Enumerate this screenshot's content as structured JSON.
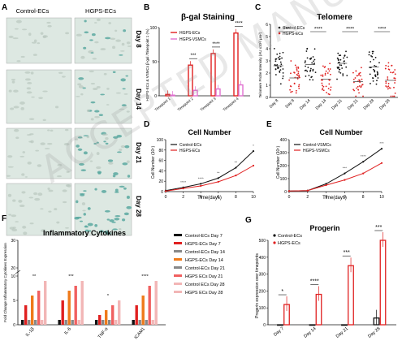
{
  "watermark": "ACCEPTED MANUSCRIPT",
  "panels": {
    "A": {
      "letter": "A",
      "col_labels": [
        "Control-ECs",
        "HGPS-ECs"
      ],
      "row_labels": [
        "Day 8",
        "Day 14",
        "Day 21",
        "Day 28"
      ]
    },
    "B": {
      "letter": "B"
    },
    "C": {
      "letter": "C"
    },
    "D": {
      "letter": "D"
    },
    "E": {
      "letter": "E"
    },
    "F": {
      "letter": "F"
    },
    "G": {
      "letter": "G"
    }
  },
  "colors": {
    "red": "#e02020",
    "pink": "#e070d0",
    "black": "#111111",
    "orange": "#ef7a1a",
    "light_pink": "#f2b6b6",
    "grey": "#888888",
    "salmon": "#f06060",
    "teal": "#5aa8a0"
  },
  "chart_data": [
    {
      "id": "B",
      "type": "bar",
      "title": "β-gal Staining",
      "ylabel": "HGPS-ECs & VSMCs β-gal /Timepoint 1 (%)",
      "categories": [
        "Timepoint 1",
        "Timepoint 2",
        "Timepoint 3",
        "Timepoint 4"
      ],
      "series": [
        {
          "name": "HGPS-ECs",
          "values": [
            2,
            45,
            62,
            92
          ]
        },
        {
          "name": "HGPS-VSMCs",
          "values": [
            1,
            8,
            10,
            16
          ]
        }
      ],
      "ylim": [
        0,
        100
      ],
      "yticks": [
        0,
        50,
        100
      ],
      "significance": [
        "***",
        "****",
        "****"
      ]
    },
    {
      "id": "C",
      "type": "scatter",
      "title": "Telomere",
      "ylabel": "Telomere Probe Intensity (AU x10³/ μm²)",
      "categories": [
        "Day 8",
        "Day 8",
        "Day 14",
        "Day 14",
        "Day 21",
        "Day 21",
        "Day 28",
        "Day 28"
      ],
      "series": [
        {
          "name": "Control-ECs",
          "positions": [
            0,
            2,
            4,
            6
          ],
          "means": [
            2.6,
            2.7,
            2.8,
            2.5
          ]
        },
        {
          "name": "HGPS-ECs",
          "positions": [
            1,
            3,
            5,
            7
          ],
          "means": [
            1.6,
            1.5,
            1.3,
            1.4
          ]
        }
      ],
      "ylim": [
        0,
        6
      ],
      "yticks": [
        0,
        1,
        2,
        3,
        4,
        5,
        6
      ],
      "significance": [
        "***",
        "****",
        "****",
        "****"
      ]
    },
    {
      "id": "D",
      "type": "line",
      "title": "Cell Number",
      "xlabel": "Time(days)",
      "ylabel": "Cell Number (10⁴)",
      "x": [
        0,
        2,
        4,
        6,
        8,
        10
      ],
      "series": [
        {
          "name": "Control-ECs",
          "values": [
            2,
            8,
            15,
            26,
            46,
            78
          ]
        },
        {
          "name": "HGPS-ECs",
          "values": [
            1,
            6,
            11,
            19,
            31,
            50
          ]
        }
      ],
      "xlim": [
        0,
        10
      ],
      "ylim": [
        0,
        100
      ],
      "xticks": [
        0,
        2,
        4,
        6,
        8,
        10
      ],
      "yticks": [
        0,
        20,
        40,
        60,
        80,
        100
      ],
      "significance": [
        "****",
        "****",
        "**",
        "**",
        "*"
      ]
    },
    {
      "id": "E",
      "type": "line",
      "title": "Cell Number",
      "xlabel": "Time(days)",
      "ylabel": "Cell Number (10⁴)",
      "x": [
        0,
        2,
        4,
        6,
        8,
        10
      ],
      "series": [
        {
          "name": "Control-VSMCs",
          "values": [
            5,
            8,
            60,
            140,
            230,
            330
          ]
        },
        {
          "name": "HGPS-VSMCs",
          "values": [
            5,
            8,
            50,
            90,
            140,
            220
          ]
        }
      ],
      "xlim": [
        0,
        10
      ],
      "ylim": [
        0,
        400
      ],
      "xticks": [
        0,
        2,
        4,
        6,
        8,
        10
      ],
      "yticks": [
        0,
        100,
        200,
        300,
        400
      ],
      "significance": [
        "***",
        "****",
        "***"
      ]
    },
    {
      "id": "F",
      "type": "bar",
      "title": "Inflammatory Cytokines",
      "ylabel": "Fold Change Inflammatory Cytokines Expression",
      "categories": [
        "IL-1β",
        "IL-6",
        "TNF-α",
        "ICAM1"
      ],
      "series": [
        {
          "name": "Control-ECs Day 7",
          "values": [
            1,
            1,
            1,
            1
          ]
        },
        {
          "name": "HGPS-ECs Day 7",
          "values": [
            4,
            5,
            2,
            4
          ]
        },
        {
          "name": "Control-ECs Day 14",
          "values": [
            1,
            1,
            1,
            1
          ]
        },
        {
          "name": "HGPS-ECs Day 14",
          "values": [
            6,
            7,
            3,
            6
          ]
        },
        {
          "name": "Control-ECs Day 21",
          "values": [
            1,
            1,
            1,
            1
          ]
        },
        {
          "name": "HGPS ECs Day 21",
          "values": [
            7,
            8,
            4,
            8
          ]
        },
        {
          "name": "Control ECs Day 28",
          "values": [
            1,
            1,
            1,
            1
          ]
        },
        {
          "name": "HGPS ECs Day 28",
          "values": [
            9,
            9,
            5,
            9
          ]
        }
      ],
      "ylim": [
        0,
        30
      ],
      "yticks": [
        0,
        5,
        10,
        20,
        30
      ],
      "significance": [
        "**",
        "***",
        "*",
        "****"
      ]
    },
    {
      "id": "G",
      "type": "bar",
      "title": "Progerin",
      "ylabel": "Progerin expression over timepoints",
      "categories": [
        "Day 7",
        "Day 14",
        "Day 21",
        "Day 28"
      ],
      "series": [
        {
          "name": "Control-ECs",
          "values": [
            0,
            0,
            0,
            40
          ]
        },
        {
          "name": "HGPS-ECs",
          "values": [
            120,
            180,
            350,
            500
          ]
        }
      ],
      "ylim": [
        0,
        500
      ],
      "yticks": [
        0,
        100,
        200,
        300,
        400,
        500
      ],
      "significance": [
        "*",
        "****",
        "***",
        "***"
      ]
    }
  ]
}
